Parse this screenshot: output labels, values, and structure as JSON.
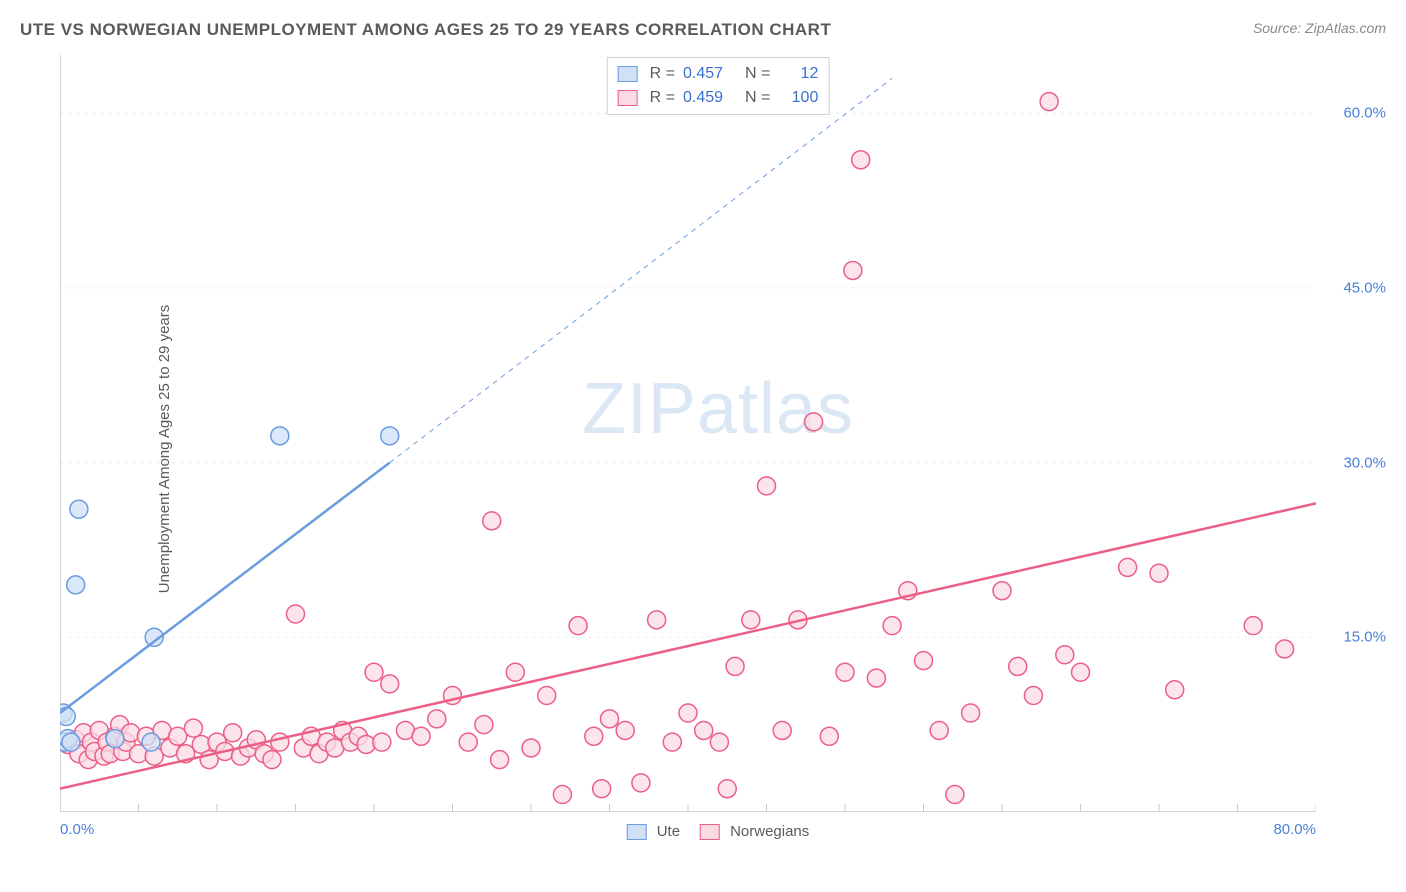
{
  "header": {
    "title": "UTE VS NORWEGIAN UNEMPLOYMENT AMONG AGES 25 TO 29 YEARS CORRELATION CHART",
    "source": "Source: ZipAtlas.com"
  },
  "watermark": {
    "bold": "ZIP",
    "light": "atlas"
  },
  "chart": {
    "type": "scatter",
    "background_color": "#ffffff",
    "grid_color": "#e8e8e8",
    "axis_color": "#c9c9c9",
    "tick_color": "#c9c9c9",
    "xlim": [
      0,
      80
    ],
    "ylim": [
      0,
      65
    ],
    "x_ticks_minor_step": 5,
    "y_gridlines": [
      15,
      30,
      45,
      60
    ],
    "y_tick_labels": [
      "15.0%",
      "30.0%",
      "45.0%",
      "60.0%"
    ],
    "x_tick_labels": {
      "0": "0.0%",
      "80": "80.0%"
    },
    "yaxis_title": "Unemployment Among Ages 25 to 29 years",
    "label_color": "#4a7fd6",
    "label_fontsize": 15,
    "axis_title_color": "#5a5a5a",
    "marker_radius": 9,
    "marker_stroke_width": 1.5,
    "trend_line_width_solid": 2.5,
    "trend_line_width_dashed": 1,
    "trend_dash": "5,5"
  },
  "series": {
    "ute": {
      "label": "Ute",
      "fill": "#cfe0f7",
      "stroke": "#6a9de0",
      "r_value": "0.457",
      "n_value": "12",
      "trend_solid": {
        "x1": 0,
        "y1": 8.5,
        "x2": 21,
        "y2": 30
      },
      "trend_dashed": {
        "x1": 21,
        "y1": 30,
        "x2": 53,
        "y2": 63
      },
      "points": [
        [
          0.2,
          8.5
        ],
        [
          0.4,
          8.2
        ],
        [
          0.3,
          6.0
        ],
        [
          0.5,
          6.3
        ],
        [
          0.7,
          6.0
        ],
        [
          1.0,
          19.5
        ],
        [
          1.2,
          26.0
        ],
        [
          3.5,
          6.3
        ],
        [
          5.8,
          6.0
        ],
        [
          6.0,
          15.0
        ],
        [
          14.0,
          32.3
        ],
        [
          21.0,
          32.3
        ]
      ]
    },
    "norwegians": {
      "label": "Norwegians",
      "fill": "#fadbe4",
      "stroke": "#ec5f86",
      "r_value": "0.459",
      "n_value": "100",
      "trend_solid": {
        "x1": 0,
        "y1": 2.0,
        "x2": 80,
        "y2": 26.5
      },
      "trend_dashed": null,
      "points": [
        [
          0.5,
          5.8
        ],
        [
          1.0,
          6.2
        ],
        [
          1.2,
          5.0
        ],
        [
          1.5,
          6.8
        ],
        [
          1.8,
          4.5
        ],
        [
          2.0,
          6.0
        ],
        [
          2.2,
          5.2
        ],
        [
          2.5,
          7.0
        ],
        [
          2.8,
          4.8
        ],
        [
          3.0,
          6.0
        ],
        [
          3.2,
          5.0
        ],
        [
          3.5,
          6.5
        ],
        [
          3.8,
          7.5
        ],
        [
          4.0,
          5.2
        ],
        [
          4.2,
          6.0
        ],
        [
          4.5,
          6.8
        ],
        [
          5.0,
          5.0
        ],
        [
          5.5,
          6.5
        ],
        [
          6.0,
          4.8
        ],
        [
          6.5,
          7.0
        ],
        [
          7.0,
          5.5
        ],
        [
          7.5,
          6.5
        ],
        [
          8.0,
          5.0
        ],
        [
          8.5,
          7.2
        ],
        [
          9.0,
          5.8
        ],
        [
          9.5,
          4.5
        ],
        [
          10.0,
          6.0
        ],
        [
          10.5,
          5.2
        ],
        [
          11.0,
          6.8
        ],
        [
          11.5,
          4.8
        ],
        [
          12.0,
          5.5
        ],
        [
          12.5,
          6.2
        ],
        [
          13.0,
          5.0
        ],
        [
          13.5,
          4.5
        ],
        [
          14.0,
          6.0
        ],
        [
          15.0,
          17.0
        ],
        [
          15.5,
          5.5
        ],
        [
          16.0,
          6.5
        ],
        [
          16.5,
          5.0
        ],
        [
          17.0,
          6.0
        ],
        [
          17.5,
          5.5
        ],
        [
          18.0,
          7.0
        ],
        [
          18.5,
          6.0
        ],
        [
          19.0,
          6.5
        ],
        [
          19.5,
          5.8
        ],
        [
          20.0,
          12.0
        ],
        [
          20.5,
          6.0
        ],
        [
          21.0,
          11.0
        ],
        [
          22.0,
          7.0
        ],
        [
          23.0,
          6.5
        ],
        [
          24.0,
          8.0
        ],
        [
          25.0,
          10.0
        ],
        [
          26.0,
          6.0
        ],
        [
          27.0,
          7.5
        ],
        [
          27.5,
          25.0
        ],
        [
          28.0,
          4.5
        ],
        [
          29.0,
          12.0
        ],
        [
          30.0,
          5.5
        ],
        [
          31.0,
          10.0
        ],
        [
          32.0,
          1.5
        ],
        [
          33.0,
          16.0
        ],
        [
          34.0,
          6.5
        ],
        [
          34.5,
          2.0
        ],
        [
          35.0,
          8.0
        ],
        [
          36.0,
          7.0
        ],
        [
          37.0,
          2.5
        ],
        [
          38.0,
          16.5
        ],
        [
          39.0,
          6.0
        ],
        [
          40.0,
          8.5
        ],
        [
          41.0,
          7.0
        ],
        [
          42.0,
          6.0
        ],
        [
          42.5,
          2.0
        ],
        [
          43.0,
          12.5
        ],
        [
          44.0,
          16.5
        ],
        [
          45.0,
          28.0
        ],
        [
          46.0,
          7.0
        ],
        [
          47.0,
          16.5
        ],
        [
          48.0,
          33.5
        ],
        [
          49.0,
          6.5
        ],
        [
          50.0,
          12.0
        ],
        [
          50.5,
          46.5
        ],
        [
          51.0,
          56.0
        ],
        [
          52.0,
          11.5
        ],
        [
          53.0,
          16.0
        ],
        [
          54.0,
          19.0
        ],
        [
          55.0,
          13.0
        ],
        [
          56.0,
          7.0
        ],
        [
          57.0,
          1.5
        ],
        [
          58.0,
          8.5
        ],
        [
          60.0,
          19.0
        ],
        [
          61.0,
          12.5
        ],
        [
          62.0,
          10.0
        ],
        [
          63.0,
          61.0
        ],
        [
          64.0,
          13.5
        ],
        [
          65.0,
          12.0
        ],
        [
          68.0,
          21.0
        ],
        [
          70.0,
          20.5
        ],
        [
          71.0,
          10.5
        ],
        [
          76.0,
          16.0
        ],
        [
          78.0,
          14.0
        ]
      ]
    }
  },
  "legend_top": {
    "r_label": "R =",
    "n_label": "N ="
  },
  "legend_bottom": {
    "items": [
      "Ute",
      "Norwegians"
    ]
  }
}
